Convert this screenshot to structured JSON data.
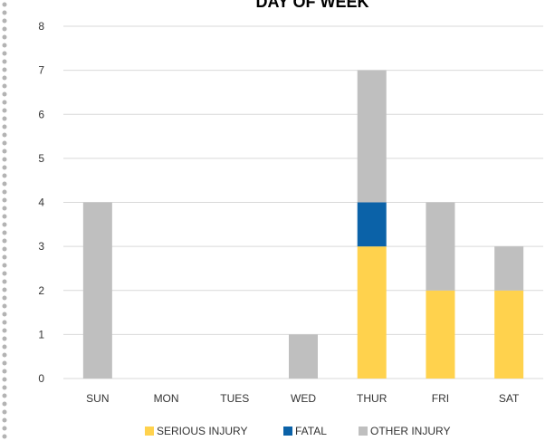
{
  "chart_data": {
    "type": "bar",
    "stacked": true,
    "title": "DAY OF WEEK",
    "categories": [
      "SUN",
      "MON",
      "TUES",
      "WED",
      "THUR",
      "FRI",
      "SAT"
    ],
    "series": [
      {
        "name": "SERIOUS INJURY",
        "color": "#ffd24d",
        "values": [
          0,
          0,
          0,
          0,
          3,
          2,
          2
        ]
      },
      {
        "name": "FATAL",
        "color": "#0b62a8",
        "values": [
          0,
          0,
          0,
          0,
          1,
          0,
          0
        ]
      },
      {
        "name": "OTHER INJURY",
        "color": "#bfbfbf",
        "values": [
          4,
          0,
          0,
          1,
          3,
          2,
          1
        ]
      }
    ],
    "ylim": [
      0,
      8
    ],
    "yticks": [
      "0",
      "1",
      "2",
      "3",
      "4",
      "5",
      "6",
      "7",
      "8"
    ],
    "grid": true,
    "legend": "bottom"
  }
}
